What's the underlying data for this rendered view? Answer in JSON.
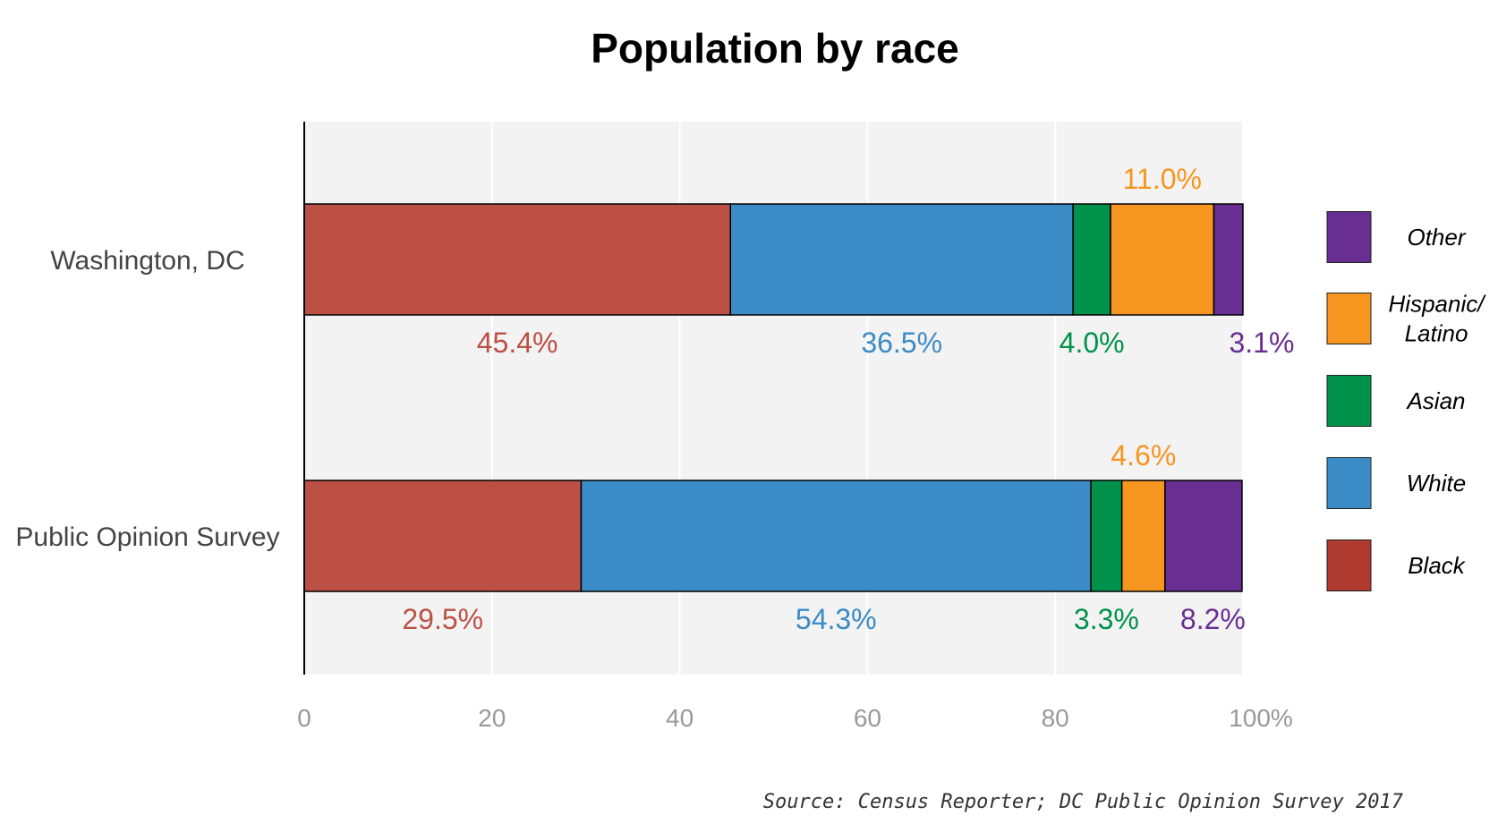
{
  "chart_data": {
    "type": "bar",
    "orientation": "horizontal",
    "stacked": true,
    "title": "Population by race",
    "source": "Source: Census Reporter; DC Public Opinion Survey 2017",
    "xlim": [
      0,
      100
    ],
    "x_ticks": [
      "0",
      "20",
      "40",
      "60",
      "80",
      "100%"
    ],
    "grid": true,
    "legend_position": "right",
    "categories": [
      "Washington, DC",
      "Public Opinion Survey"
    ],
    "series": [
      {
        "name": "Black",
        "color": "#bc5045",
        "legend_color": "#ae3a30",
        "values": [
          45.4,
          29.5
        ],
        "labels": [
          "45.4%",
          "29.5%"
        ],
        "label_pos": [
          "below",
          "below"
        ]
      },
      {
        "name": "White",
        "color": "#3b8bc6",
        "legend_color": "#3b8bc6",
        "values": [
          36.5,
          54.3
        ],
        "labels": [
          "36.5%",
          "54.3%"
        ],
        "label_pos": [
          "below",
          "below"
        ]
      },
      {
        "name": "Asian",
        "color": "#00924a",
        "legend_color": "#00924a",
        "values": [
          4.0,
          3.3
        ],
        "labels": [
          "4.0%",
          "3.3%"
        ],
        "label_pos": [
          "below",
          "below"
        ]
      },
      {
        "name": "Hispanic/ Latino",
        "color": "#f6951f",
        "legend_color": "#f6951f",
        "values": [
          11.0,
          4.6
        ],
        "labels": [
          "11.0%",
          "4.6%"
        ],
        "label_pos": [
          "above",
          "above"
        ]
      },
      {
        "name": "Other",
        "color": "#692e92",
        "legend_color": "#692e92",
        "values": [
          3.1,
          8.2
        ],
        "labels": [
          "3.1%",
          "8.2%"
        ],
        "label_pos": [
          "below",
          "below"
        ]
      }
    ],
    "legend": [
      {
        "lines": [
          "Other"
        ],
        "series": "Other"
      },
      {
        "lines": [
          "Hispanic/",
          "Latino"
        ],
        "series": "Hispanic/ Latino"
      },
      {
        "lines": [
          "Asian"
        ],
        "series": "Asian"
      },
      {
        "lines": [
          "White"
        ],
        "series": "White"
      },
      {
        "lines": [
          "Black"
        ],
        "series": "Black"
      }
    ],
    "colors": {
      "panel_background": "#f3f3f3",
      "gridline": "#ffffff",
      "axis": "#000000",
      "bar_border": "#000000"
    }
  }
}
